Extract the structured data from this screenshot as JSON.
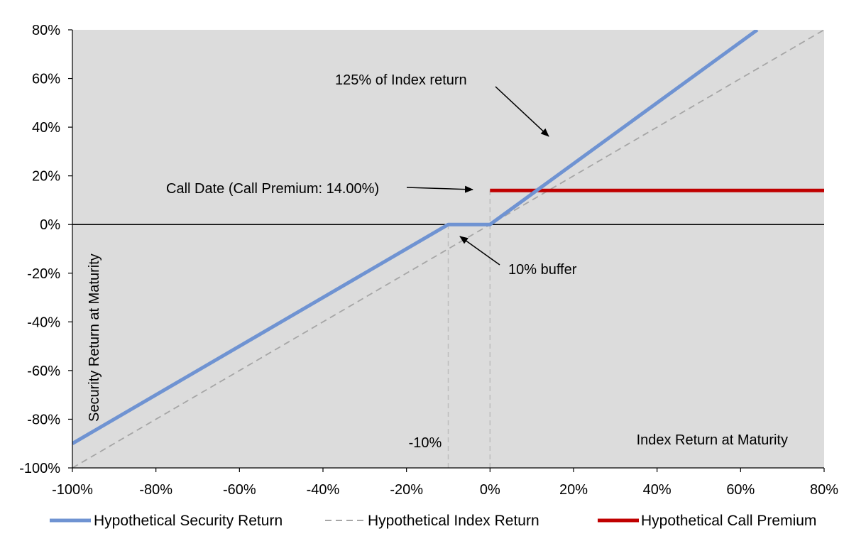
{
  "chart_data": {
    "type": "line",
    "title": "",
    "xlabel": "Index Return at Maturity",
    "ylabel": "Security Return at Maturity",
    "xlim": [
      -100,
      80
    ],
    "ylim": [
      -100,
      80
    ],
    "x_ticks": [
      "-100%",
      "-80%",
      "-60%",
      "-40%",
      "-20%",
      "0%",
      "20%",
      "40%",
      "60%",
      "80%"
    ],
    "y_ticks": [
      "80%",
      "60%",
      "40%",
      "20%",
      "0%",
      "-20%",
      "-40%",
      "-60%",
      "-80%",
      "-100%"
    ],
    "x_tick_values": [
      -100,
      -80,
      -60,
      -40,
      -20,
      0,
      20,
      40,
      60,
      80
    ],
    "y_tick_values": [
      80,
      60,
      40,
      20,
      0,
      -20,
      -40,
      -60,
      -80,
      -100
    ],
    "series": [
      {
        "name": "Hypothetical Security Return",
        "color": "#6f93d2",
        "style": "solid",
        "x": [
          -100,
          -10,
          0,
          64
        ],
        "y": [
          -90,
          0,
          0,
          80
        ]
      },
      {
        "name": "Hypothetical Index Return",
        "color": "#a6a6a6",
        "style": "dashed",
        "x": [
          -100,
          80
        ],
        "y": [
          -100,
          80
        ]
      },
      {
        "name": "Hypothetical Call Premium",
        "color": "#c00000",
        "style": "solid",
        "x": [
          0,
          80
        ],
        "y": [
          14,
          14
        ]
      }
    ],
    "reference_lines": [
      {
        "x": -10,
        "y_from": -100,
        "y_to": 0
      },
      {
        "x": 0,
        "y_from": -100,
        "y_to": 14
      }
    ],
    "annotations": {
      "index_return": "125% of Index return",
      "call_date": "Call Date (Call Premium: 14.00%)",
      "buffer": "10% buffer",
      "buffer_level": "-10%"
    },
    "legend_position": "bottom"
  },
  "colors": {
    "plot_background": "#dcdcdc",
    "zero_line": "#000000"
  }
}
